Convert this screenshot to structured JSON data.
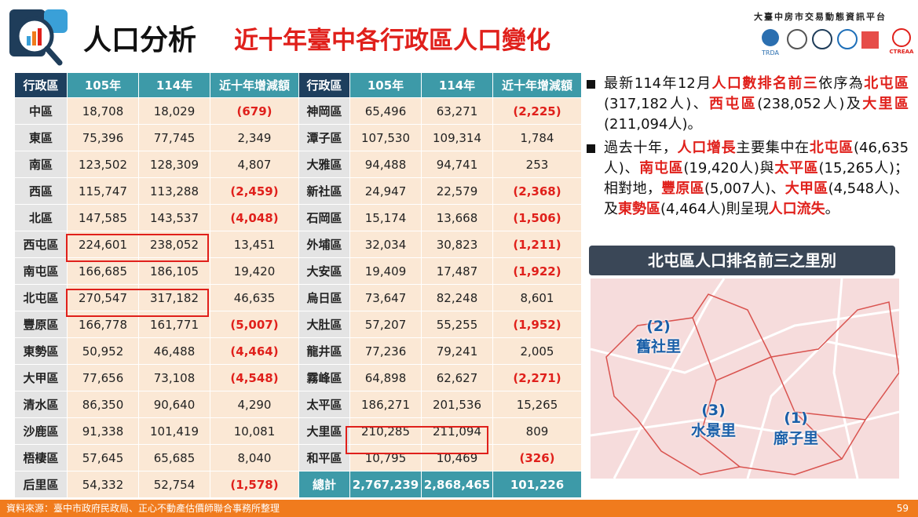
{
  "header": {
    "title": "人口分析",
    "subtitle": "近十年臺中各行政區人口變化",
    "platform": "大臺中房市交易動態資訊平台",
    "logos": [
      "TRDA",
      "CTREAA"
    ]
  },
  "table": {
    "headers": [
      "行政區",
      "105年",
      "114年",
      "近十年增減額",
      "行政區",
      "105年",
      "114年",
      "近十年增減額"
    ],
    "rows": [
      [
        "中區",
        "18,708",
        "18,029",
        "(679)",
        "神岡區",
        "65,496",
        "63,271",
        "(2,225)"
      ],
      [
        "東區",
        "75,396",
        "77,745",
        "2,349",
        "潭子區",
        "107,530",
        "109,314",
        "1,784"
      ],
      [
        "南區",
        "123,502",
        "128,309",
        "4,807",
        "大雅區",
        "94,488",
        "94,741",
        "253"
      ],
      [
        "西區",
        "115,747",
        "113,288",
        "(2,459)",
        "新社區",
        "24,947",
        "22,579",
        "(2,368)"
      ],
      [
        "北區",
        "147,585",
        "143,537",
        "(4,048)",
        "石岡區",
        "15,174",
        "13,668",
        "(1,506)"
      ],
      [
        "西屯區",
        "224,601",
        "238,052",
        "13,451",
        "外埔區",
        "32,034",
        "30,823",
        "(1,211)"
      ],
      [
        "南屯區",
        "166,685",
        "186,105",
        "19,420",
        "大安區",
        "19,409",
        "17,487",
        "(1,922)"
      ],
      [
        "北屯區",
        "270,547",
        "317,182",
        "46,635",
        "烏日區",
        "73,647",
        "82,248",
        "8,601"
      ],
      [
        "豐原區",
        "166,778",
        "161,771",
        "(5,007)",
        "大肚區",
        "57,207",
        "55,255",
        "(1,952)"
      ],
      [
        "東勢區",
        "50,952",
        "46,488",
        "(4,464)",
        "龍井區",
        "77,236",
        "79,241",
        "2,005"
      ],
      [
        "大甲區",
        "77,656",
        "73,108",
        "(4,548)",
        "霧峰區",
        "64,898",
        "62,627",
        "(2,271)"
      ],
      [
        "清水區",
        "86,350",
        "90,640",
        "4,290",
        "太平區",
        "186,271",
        "201,536",
        "15,265"
      ],
      [
        "沙鹿區",
        "91,338",
        "101,419",
        "10,081",
        "大里區",
        "210,285",
        "211,094",
        "809"
      ],
      [
        "梧棲區",
        "57,645",
        "65,685",
        "8,040",
        "和平區",
        "10,795",
        "10,469",
        "(326)"
      ],
      [
        "后里區",
        "54,332",
        "52,754",
        "(1,578)",
        "總計",
        "2,767,239",
        "2,868,465",
        "101,226"
      ]
    ]
  },
  "bullets": [
    [
      {
        "text": "最新114年12月"
      },
      {
        "text": "人口數排名前三",
        "em": true
      },
      {
        "text": "依序為"
      },
      {
        "text": "北屯區",
        "em": true
      },
      {
        "text": "(317,182人)、"
      },
      {
        "text": "西屯區",
        "em": true
      },
      {
        "text": "(238,052人)及"
      },
      {
        "text": "大里區",
        "em": true
      },
      {
        "text": "(211,094人)。"
      }
    ],
    [
      {
        "text": "過去十年，"
      },
      {
        "text": "人口增長",
        "em": true
      },
      {
        "text": "主要集中在"
      },
      {
        "text": "北屯區",
        "em": true
      },
      {
        "text": "(46,635人)、"
      },
      {
        "text": "南屯區",
        "em": true
      },
      {
        "text": "(19,420人)與"
      },
      {
        "text": "太平區",
        "em": true
      },
      {
        "text": "(15,265人)；相對地，"
      },
      {
        "text": "豐原區",
        "em": true
      },
      {
        "text": "(5,007人)、"
      },
      {
        "text": "大甲區",
        "em": true
      },
      {
        "text": "(4,548人)、及"
      },
      {
        "text": "東勢區",
        "em": true
      },
      {
        "text": "(4,464人)則呈現"
      },
      {
        "text": "人口流失",
        "em": true
      },
      {
        "text": "。"
      }
    ]
  ],
  "map": {
    "title": "北屯區人口排名前三之里別",
    "labels": [
      {
        "rank": "(2)",
        "name": "舊社里"
      },
      {
        "rank": "(3)",
        "name": "水景里"
      },
      {
        "rank": "(1)",
        "name": "廍子里"
      }
    ]
  },
  "footer": {
    "source": "資料來源：臺中市政府民政局、正心不動產估價師聯合事務所整理",
    "page": "59"
  }
}
